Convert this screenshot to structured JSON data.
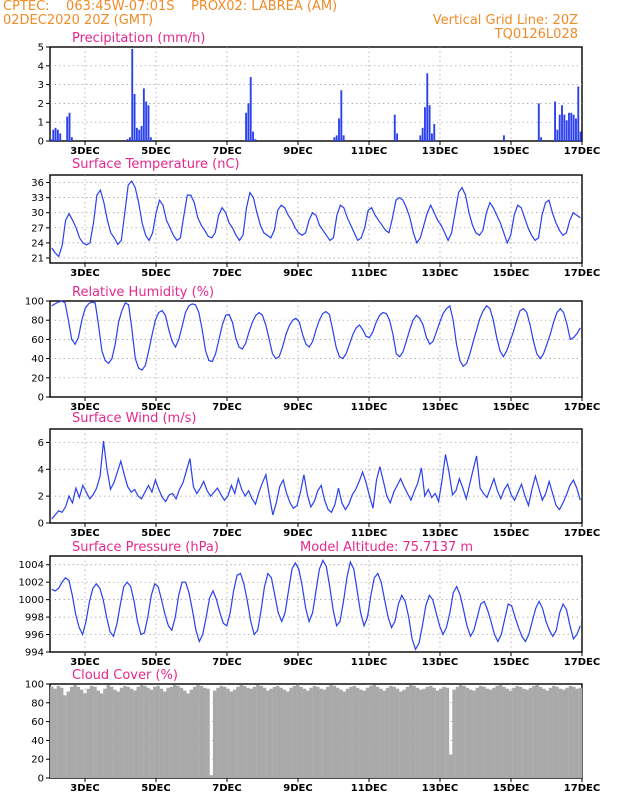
{
  "header": {
    "line1_left": "CPTEC:    063:45W-07:01S    PROX02: LABREA (AM)",
    "line2_left": "02DEC2020 20Z (GMT)",
    "line2_right": "Vertical Grid Line: 20Z",
    "line3_right": "TQ0126L028"
  },
  "colors": {
    "header": "#f08c28",
    "title": "#e6288c",
    "line": "#2a3ff0",
    "cloud": "#a9a9a9",
    "grid": "#9a9a9a"
  },
  "chart_data": [
    {
      "type": "bar",
      "title": "Precipitation (mm/h)",
      "x_tick_labels": [
        "3DEC",
        "5DEC",
        "7DEC",
        "9DEC",
        "11DEC",
        "13DEC",
        "15DEC",
        "17DEC"
      ],
      "y_ticks": [
        "0",
        "1",
        "2",
        "3",
        "4",
        "5"
      ],
      "ylim": [
        0,
        5
      ],
      "grid": true,
      "values": [
        0.1,
        0.6,
        0.7,
        0.6,
        0.4,
        0,
        0,
        1.3,
        1.5,
        0.2,
        0,
        0,
        0,
        0,
        0,
        0,
        0,
        0,
        0,
        0,
        0,
        0,
        0,
        0,
        0,
        0,
        0,
        0,
        0,
        0,
        0,
        0,
        0,
        0.1,
        0.2,
        4.9,
        2.5,
        0.7,
        0.6,
        0.8,
        2.8,
        2.1,
        1.9,
        0.2,
        0,
        0,
        0,
        0,
        0,
        0,
        0,
        0,
        0,
        0,
        0,
        0,
        0,
        0,
        0,
        0,
        0,
        0,
        0,
        0,
        0,
        0,
        0,
        0,
        0,
        0,
        0,
        0,
        0,
        0,
        0,
        0,
        0,
        0,
        0,
        0,
        0,
        0,
        0,
        0,
        1.5,
        2.0,
        3.4,
        0.5,
        0.1,
        0,
        0,
        0,
        0,
        0,
        0,
        0,
        0,
        0,
        0,
        0,
        0,
        0,
        0,
        0,
        0,
        0,
        0,
        0,
        0,
        0,
        0,
        0,
        0,
        0,
        0,
        0,
        0,
        0,
        0,
        0,
        0,
        0,
        0.2,
        0.3,
        1.2,
        2.7,
        0.3,
        0,
        0,
        0,
        0,
        0,
        0,
        0,
        0,
        0,
        0,
        0,
        0,
        0,
        0,
        0,
        0,
        0,
        0,
        0,
        0,
        0,
        1.4,
        0.4,
        0,
        0,
        0,
        0,
        0,
        0,
        0,
        0,
        0,
        0.3,
        0.7,
        1.8,
        3.6,
        1.9,
        0.4,
        0.9,
        0,
        0,
        0,
        0,
        0,
        0,
        0,
        0,
        0,
        0,
        0,
        0,
        0,
        0,
        0,
        0,
        0,
        0,
        0,
        0,
        0,
        0,
        0,
        0,
        0,
        0,
        0,
        0,
        0,
        0.3,
        0,
        0,
        0,
        0,
        0,
        0,
        0,
        0,
        0,
        0,
        0,
        0,
        0,
        0,
        2.0,
        0.2,
        0,
        0,
        0,
        0,
        0,
        2.1,
        0.6,
        1.4,
        1.9,
        1.4,
        1.1,
        1.5,
        1.5,
        1.4,
        1.2,
        2.9,
        0.5
      ]
    },
    {
      "type": "line",
      "title": "Surface Temperature (nC)",
      "x_tick_labels": [
        "3DEC",
        "5DEC",
        "7DEC",
        "9DEC",
        "11DEC",
        "13DEC",
        "15DEC",
        "17DEC"
      ],
      "y_ticks": [
        "21",
        "24",
        "27",
        "30",
        "33",
        "36"
      ],
      "ylim": [
        20,
        37.5
      ],
      "grid": true,
      "values": [
        23.0,
        22.0,
        21.3,
        23.5,
        28.5,
        29.8,
        28.5,
        27.0,
        25.0,
        24.0,
        23.6,
        24.0,
        28.0,
        33.5,
        34.5,
        32.0,
        28.5,
        26.0,
        25.0,
        23.7,
        24.5,
        30.0,
        35.5,
        36.3,
        35.0,
        32.0,
        28.0,
        25.5,
        24.5,
        26.0,
        30.0,
        32.5,
        31.5,
        28.5,
        27.0,
        25.5,
        24.5,
        25.0,
        29.5,
        33.5,
        33.5,
        32.0,
        29.0,
        27.5,
        26.5,
        25.3,
        25.0,
        26.0,
        29.5,
        31.0,
        30.0,
        28.0,
        27.0,
        25.5,
        24.5,
        25.5,
        31.0,
        34.0,
        33.0,
        30.0,
        27.5,
        26.0,
        25.5,
        25.0,
        26.5,
        30.5,
        31.5,
        31.0,
        29.5,
        28.5,
        27.0,
        26.0,
        25.5,
        26.0,
        28.5,
        30.0,
        29.5,
        27.5,
        26.5,
        25.5,
        24.5,
        25.0,
        29.5,
        31.5,
        31.0,
        29.0,
        27.5,
        26.0,
        24.5,
        25.0,
        27.0,
        30.5,
        31.0,
        29.5,
        28.5,
        27.5,
        26.5,
        26.0,
        29.0,
        32.5,
        33.0,
        32.5,
        31.0,
        29.0,
        26.0,
        24.0,
        25.0,
        27.5,
        30.0,
        31.5,
        30.0,
        28.5,
        27.5,
        26.0,
        24.5,
        26.0,
        30.0,
        34.0,
        35.0,
        33.5,
        30.0,
        27.5,
        26.0,
        25.5,
        26.5,
        30.0,
        32.0,
        31.0,
        29.5,
        28.0,
        26.0,
        24.0,
        25.5,
        29.5,
        31.5,
        31.0,
        29.0,
        27.0,
        25.5,
        24.5,
        25.0,
        29.5,
        32.0,
        32.5,
        30.0,
        28.0,
        26.5,
        25.5,
        26.0,
        28.5,
        30.0,
        29.5,
        29.0
      ]
    },
    {
      "type": "line",
      "title": "Relative Humidity (%)",
      "x_tick_labels": [
        "3DEC",
        "5DEC",
        "7DEC",
        "9DEC",
        "11DEC",
        "13DEC",
        "15DEC",
        "17DEC"
      ],
      "y_ticks": [
        "0",
        "20",
        "40",
        "60",
        "80",
        "100"
      ],
      "ylim": [
        0,
        100
      ],
      "grid": true,
      "values": [
        95,
        97,
        99,
        100,
        98,
        80,
        60,
        55,
        62,
        80,
        92,
        97,
        99,
        98,
        75,
        48,
        38,
        35,
        40,
        55,
        78,
        90,
        98,
        96,
        70,
        40,
        30,
        28,
        33,
        48,
        65,
        80,
        88,
        90,
        85,
        70,
        58,
        52,
        60,
        74,
        88,
        95,
        97,
        96,
        88,
        70,
        48,
        38,
        37,
        45,
        60,
        75,
        85,
        86,
        78,
        62,
        52,
        50,
        56,
        68,
        78,
        85,
        88,
        85,
        75,
        60,
        45,
        40,
        42,
        52,
        65,
        74,
        80,
        82,
        78,
        65,
        55,
        52,
        58,
        70,
        80,
        87,
        89,
        86,
        70,
        52,
        42,
        40,
        45,
        55,
        65,
        72,
        75,
        70,
        63,
        62,
        68,
        78,
        85,
        88,
        87,
        80,
        65,
        45,
        42,
        47,
        58,
        70,
        80,
        85,
        82,
        75,
        62,
        55,
        58,
        68,
        78,
        87,
        92,
        95,
        80,
        55,
        38,
        32,
        35,
        45,
        58,
        70,
        82,
        90,
        95,
        92,
        80,
        62,
        48,
        42,
        48,
        58,
        68,
        80,
        90,
        92,
        88,
        75,
        58,
        45,
        40,
        45,
        55,
        65,
        78,
        88,
        92,
        88,
        76,
        60,
        62,
        66,
        72
      ]
    },
    {
      "type": "line",
      "title": "Surface Wind (m/s)",
      "x_tick_labels": [
        "3DEC",
        "5DEC",
        "7DEC",
        "9DEC",
        "11DEC",
        "13DEC",
        "15DEC",
        "17DEC"
      ],
      "y_ticks": [
        "0",
        "2",
        "4",
        "6"
      ],
      "ylim": [
        0,
        7
      ],
      "grid": true,
      "values": [
        0.3,
        0.6,
        0.9,
        0.8,
        1.2,
        2.0,
        1.5,
        2.6,
        1.9,
        2.8,
        2.3,
        1.8,
        2.1,
        2.6,
        3.5,
        6.1,
        4.0,
        2.5,
        3.0,
        3.8,
        4.6,
        3.6,
        2.7,
        2.3,
        2.5,
        2.0,
        1.8,
        2.3,
        2.8,
        2.3,
        3.2,
        2.5,
        1.9,
        1.6,
        2.1,
        2.2,
        1.8,
        2.5,
        3.0,
        3.9,
        4.8,
        2.7,
        2.2,
        2.6,
        3.1,
        2.4,
        2.0,
        2.3,
        2.6,
        2.1,
        1.7,
        2.0,
        2.8,
        2.2,
        3.3,
        2.5,
        2.0,
        2.4,
        1.8,
        1.4,
        2.3,
        3.0,
        3.6,
        2.0,
        0.6,
        1.5,
        2.7,
        3.2,
        2.2,
        1.5,
        1.1,
        1.3,
        2.3,
        3.6,
        2.1,
        1.2,
        1.6,
        2.4,
        2.8,
        1.7,
        1.0,
        0.8,
        1.4,
        2.6,
        1.5,
        1.0,
        1.4,
        2.1,
        2.5,
        3.1,
        3.8,
        3.0,
        2.0,
        1.1,
        3.2,
        4.2,
        3.1,
        2.0,
        1.5,
        2.3,
        2.8,
        3.3,
        2.7,
        2.2,
        1.7,
        2.4,
        3.0,
        4.1,
        2.0,
        2.5,
        1.9,
        2.2,
        1.6,
        3.2,
        5.1,
        3.8,
        2.1,
        2.4,
        3.3,
        2.6,
        1.8,
        2.9,
        4.0,
        5.0,
        2.6,
        2.2,
        1.9,
        2.6,
        3.3,
        2.4,
        1.8,
        2.5,
        2.9,
        2.1,
        1.7,
        2.3,
        2.9,
        2.0,
        1.3,
        2.5,
        3.5,
        2.6,
        1.7,
        2.2,
        3.1,
        2.2,
        1.3,
        1.0,
        1.5,
        2.1,
        2.8,
        3.2,
        2.6,
        1.7
      ]
    },
    {
      "type": "line",
      "title": "Surface Pressure (hPa)",
      "annotation": "Model Altitude: 75.7137 m",
      "x_tick_labels": [
        "3DEC",
        "5DEC",
        "7DEC",
        "9DEC",
        "11DEC",
        "13DEC",
        "15DEC",
        "17DEC"
      ],
      "y_ticks": [
        "994",
        "996",
        "998",
        "1000",
        "1002",
        "1004"
      ],
      "ylim": [
        994,
        1005
      ],
      "grid": true,
      "values": [
        1001.2,
        1001.0,
        1001.3,
        1002.0,
        1002.5,
        1002.2,
        1000.5,
        998.3,
        996.8,
        996.0,
        997.5,
        999.8,
        1001.3,
        1001.8,
        1001.3,
        1000.0,
        998.0,
        996.3,
        995.8,
        997.2,
        999.5,
        1001.5,
        1002.0,
        1001.5,
        999.8,
        997.5,
        996.0,
        996.2,
        998.0,
        1000.5,
        1001.8,
        1001.5,
        1000.0,
        998.3,
        997.0,
        996.5,
        998.0,
        1000.5,
        1002.0,
        1002.0,
        1000.8,
        998.8,
        996.5,
        995.2,
        996.0,
        998.0,
        1000.2,
        1001.0,
        1000.0,
        998.5,
        997.3,
        997.0,
        998.5,
        1001.0,
        1002.8,
        1003.0,
        1001.8,
        999.8,
        997.5,
        996.0,
        996.5,
        998.8,
        1001.5,
        1003.0,
        1002.5,
        1000.5,
        998.5,
        997.5,
        998.5,
        1001.0,
        1003.5,
        1004.2,
        1003.5,
        1001.5,
        999.0,
        997.5,
        998.5,
        1001.0,
        1003.5,
        1004.5,
        1003.8,
        1001.5,
        998.8,
        997.0,
        997.5,
        999.8,
        1002.5,
        1004.3,
        1003.5,
        1001.0,
        998.5,
        997.0,
        998.0,
        1000.5,
        1002.5,
        1003.0,
        1002.0,
        1000.0,
        998.0,
        996.8,
        997.5,
        999.5,
        1000.5,
        999.8,
        998.0,
        995.5,
        994.3,
        995.0,
        997.0,
        999.3,
        1000.5,
        1000.0,
        998.5,
        997.0,
        996.0,
        996.8,
        998.5,
        1000.8,
        1001.5,
        1000.5,
        998.8,
        997.0,
        995.8,
        996.5,
        998.0,
        999.5,
        999.8,
        998.8,
        997.5,
        996.0,
        995.2,
        996.0,
        997.8,
        999.5,
        999.3,
        998.0,
        996.8,
        995.8,
        995.2,
        996.0,
        997.5,
        999.0,
        999.8,
        999.0,
        997.5,
        996.5,
        995.8,
        996.5,
        998.5,
        999.5,
        998.8,
        997.0,
        995.5,
        996.0,
        997.0
      ]
    },
    {
      "type": "bar",
      "title": "Cloud Cover (%)",
      "x_tick_labels": [
        "3DEC",
        "5DEC",
        "7DEC",
        "9DEC",
        "11DEC",
        "13DEC",
        "15DEC",
        "17DEC"
      ],
      "y_ticks": [
        "0",
        "20",
        "40",
        "60",
        "80",
        "100"
      ],
      "ylim": [
        0,
        100
      ],
      "grid": true,
      "values": [
        97,
        95,
        98,
        96,
        88,
        92,
        97,
        99,
        97,
        94,
        90,
        95,
        98,
        97,
        93,
        90,
        95,
        99,
        97,
        94,
        92,
        96,
        98,
        97,
        95,
        93,
        97,
        99,
        98,
        96,
        94,
        97,
        98,
        95,
        92,
        96,
        97,
        99,
        98,
        96,
        93,
        90,
        94,
        97,
        99,
        98,
        96,
        95,
        3,
        93,
        96,
        98,
        97,
        95,
        92,
        94,
        97,
        99,
        98,
        96,
        95,
        97,
        99,
        98,
        96,
        93,
        95,
        97,
        98,
        96,
        94,
        92,
        96,
        98,
        99,
        97,
        95,
        93,
        96,
        98,
        97,
        95,
        94,
        97,
        99,
        98,
        96,
        94,
        92,
        95,
        97,
        98,
        96,
        94,
        93,
        96,
        98,
        99,
        97,
        95,
        93,
        96,
        98,
        97,
        95,
        92,
        94,
        97,
        99,
        98,
        96,
        94,
        95,
        97,
        98,
        96,
        93,
        95,
        97,
        96,
        25,
        94,
        97,
        99,
        98,
        96,
        94,
        93,
        96,
        98,
        97,
        95,
        94,
        96,
        98,
        99,
        97,
        95,
        93,
        96,
        98,
        97,
        95,
        94,
        96,
        98,
        99,
        97,
        95,
        93,
        96,
        98,
        97,
        95,
        94,
        96,
        98,
        97,
        95,
        96
      ]
    }
  ]
}
